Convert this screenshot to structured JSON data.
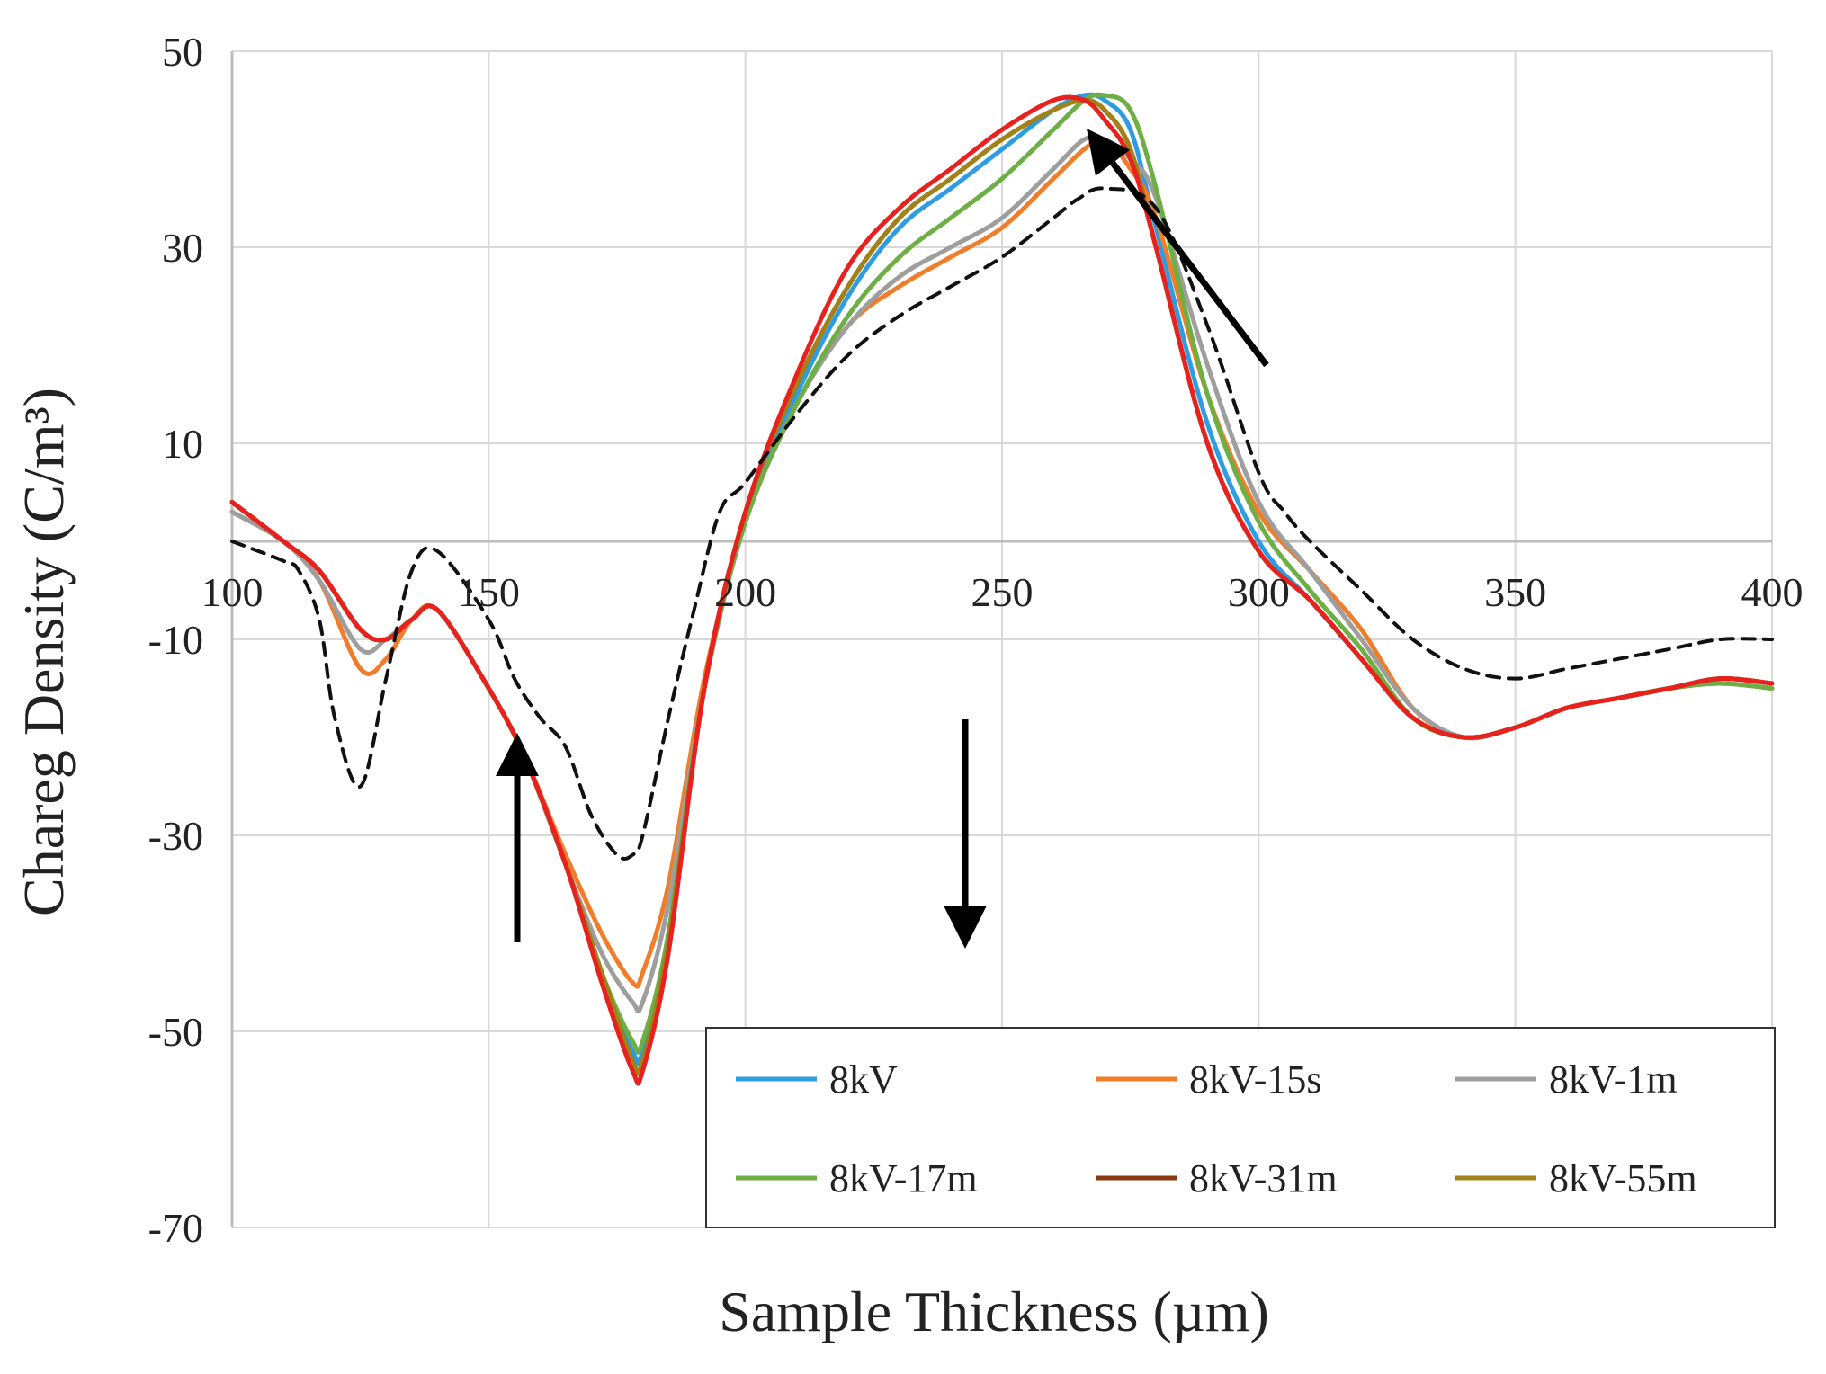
{
  "chart_data": {
    "type": "line",
    "title": "",
    "xlabel": "Sample Thickness (µm)",
    "ylabel": "Chareg Density (C/m³)",
    "xlim": [
      100,
      400
    ],
    "ylim": [
      -70,
      50
    ],
    "x_ticks": [
      100,
      150,
      200,
      250,
      300,
      350,
      400
    ],
    "y_ticks": [
      50,
      30,
      10,
      -10,
      -30,
      -50,
      -70
    ],
    "x_tick_labels": [
      "100",
      "150",
      "200",
      "250",
      "300",
      "350",
      "400"
    ],
    "y_tick_labels": [
      "50",
      "30",
      "10",
      "-10",
      "-30",
      "-50",
      "-70"
    ],
    "grid": true,
    "legend_position": "bottom-right",
    "series": [
      {
        "name": "8kV",
        "color": "#2E9CE0",
        "dashed": false,
        "in_legend": true,
        "x": [
          100,
          110,
          117,
          125,
          130,
          135,
          140,
          150,
          157,
          165,
          172,
          178,
          180,
          185,
          192,
          200,
          210,
          220,
          230,
          240,
          250,
          260,
          266,
          270,
          275,
          280,
          290,
          300,
          310,
          320,
          330,
          340,
          350,
          360,
          370,
          380,
          390,
          400
        ],
        "y": [
          4,
          0,
          -3,
          -9,
          -10,
          -8,
          -7,
          -15,
          -22,
          -33,
          -44,
          -52,
          -52,
          -40,
          -15,
          2,
          15,
          25,
          32,
          36,
          40,
          44,
          45.5,
          45,
          42,
          32,
          12,
          0,
          -6,
          -12,
          -18,
          -20,
          -19,
          -17,
          -16,
          -15,
          -14,
          -14.5
        ]
      },
      {
        "name": "8kV-15s",
        "color": "#F07D2A",
        "dashed": false,
        "in_legend": true,
        "x": [
          100,
          110,
          117,
          125,
          130,
          135,
          140,
          150,
          157,
          165,
          172,
          178,
          180,
          185,
          192,
          200,
          210,
          220,
          230,
          240,
          250,
          260,
          266,
          270,
          275,
          280,
          290,
          300,
          310,
          320,
          330,
          340,
          350,
          360,
          370,
          380,
          390,
          400
        ],
        "y": [
          3,
          0,
          -4,
          -13,
          -12,
          -8,
          -7,
          -15,
          -22,
          -32,
          -40,
          -45,
          -44,
          -35,
          -14,
          2,
          14,
          22,
          26,
          29,
          32,
          37,
          40,
          41,
          38,
          33,
          15,
          3,
          -3,
          -9,
          -17,
          -20,
          -19,
          -17,
          -16,
          -15,
          -14.5,
          -15
        ]
      },
      {
        "name": "8kV-1m",
        "color": "#9E9E9E",
        "dashed": false,
        "in_legend": true,
        "x": [
          100,
          110,
          117,
          125,
          130,
          135,
          140,
          150,
          157,
          165,
          172,
          178,
          180,
          185,
          192,
          200,
          210,
          220,
          230,
          240,
          250,
          260,
          266,
          270,
          275,
          280,
          290,
          300,
          310,
          320,
          330,
          340,
          350,
          360,
          370,
          380,
          390,
          400
        ],
        "y": [
          3,
          0,
          -4,
          -11,
          -10,
          -8,
          -7,
          -15,
          -22,
          -33,
          -42,
          -47,
          -47,
          -37,
          -15,
          2,
          14,
          22,
          27,
          30,
          33,
          38,
          41,
          41,
          39,
          35,
          18,
          4,
          -3,
          -10,
          -17,
          -20,
          -19,
          -17,
          -16,
          -15,
          -14.5,
          -15
        ]
      },
      {
        "name": "8kV-17m",
        "color": "#6DAE45",
        "dashed": false,
        "in_legend": true,
        "x": [
          100,
          110,
          117,
          125,
          130,
          135,
          140,
          150,
          157,
          165,
          172,
          178,
          180,
          185,
          192,
          200,
          210,
          220,
          230,
          240,
          250,
          260,
          266,
          270,
          275,
          280,
          290,
          300,
          310,
          320,
          330,
          340,
          350,
          360,
          370,
          380,
          390,
          400
        ],
        "y": [
          4,
          0,
          -3,
          -9,
          -10,
          -8,
          -7,
          -15,
          -22,
          -33,
          -44,
          -51,
          -51,
          -40,
          -15,
          2,
          14,
          23,
          29,
          33,
          37,
          42,
          45,
          45.5,
          44,
          36,
          15,
          2,
          -5,
          -11,
          -18,
          -20,
          -19,
          -17,
          -16,
          -15,
          -14.5,
          -15
        ]
      },
      {
        "name": "8kV-31m",
        "color": "#8B3A0F",
        "dashed": false,
        "in_legend": true,
        "x": [
          100,
          110,
          117,
          125,
          130,
          135,
          140,
          150,
          157,
          165,
          172,
          178,
          180,
          185,
          192,
          200,
          210,
          220,
          230,
          240,
          250,
          260,
          266,
          270,
          275,
          280,
          290,
          300,
          310,
          320,
          330,
          340,
          350,
          360,
          370,
          380,
          390,
          400
        ],
        "y": [
          4,
          0,
          -3,
          -9,
          -10,
          -8,
          -7,
          -15,
          -22,
          -33,
          -44,
          -53,
          -53,
          -41,
          -15,
          3,
          16,
          26,
          33,
          37,
          41,
          44,
          45,
          44,
          40,
          30,
          10,
          -1,
          -6,
          -12,
          -18,
          -20,
          -19,
          -17,
          -16,
          -15,
          -14,
          -14.5
        ]
      },
      {
        "name": "8kV-55m",
        "color": "#A08218",
        "dashed": false,
        "in_legend": true,
        "x": [
          100,
          110,
          117,
          125,
          130,
          135,
          140,
          150,
          157,
          165,
          172,
          178,
          180,
          185,
          192,
          200,
          210,
          220,
          230,
          240,
          250,
          260,
          266,
          270,
          275,
          280,
          290,
          300,
          310,
          320,
          330,
          340,
          350,
          360,
          370,
          380,
          390,
          400
        ],
        "y": [
          4,
          0,
          -3,
          -9,
          -10,
          -8,
          -7,
          -15,
          -22,
          -33,
          -44,
          -53,
          -53,
          -41,
          -15,
          3,
          16,
          26,
          33,
          37,
          41,
          44,
          45,
          44,
          40,
          30,
          10,
          -1,
          -6,
          -12,
          -18,
          -20,
          -19,
          -17,
          -16,
          -15,
          -14,
          -14.5
        ]
      },
      {
        "name": "red",
        "color": "#E8201E",
        "dashed": false,
        "in_legend": false,
        "x": [
          100,
          110,
          117,
          125,
          130,
          135,
          140,
          150,
          157,
          165,
          172,
          178,
          180,
          185,
          192,
          200,
          210,
          220,
          230,
          240,
          250,
          260,
          266,
          270,
          275,
          280,
          290,
          300,
          310,
          320,
          330,
          340,
          350,
          360,
          370,
          380,
          390,
          400
        ],
        "y": [
          4,
          0,
          -3,
          -9,
          -10,
          -8,
          -7,
          -15,
          -22,
          -33,
          -45,
          -54,
          -54,
          -42,
          -15,
          3,
          17,
          28,
          34,
          38,
          42,
          45,
          45,
          43,
          39,
          30,
          10,
          -1,
          -6,
          -12,
          -18,
          -20,
          -19,
          -17,
          -16,
          -15,
          -14,
          -14.5
        ]
      },
      {
        "name": "dashed",
        "color": "#111111",
        "dashed": true,
        "in_legend": false,
        "x": [
          100,
          110,
          113,
          117,
          120,
          125,
          130,
          135,
          140,
          150,
          155,
          160,
          165,
          170,
          175,
          178,
          180,
          185,
          190,
          195,
          200,
          210,
          220,
          230,
          240,
          250,
          260,
          265,
          270,
          280,
          290,
          300,
          305,
          310,
          320,
          330,
          340,
          350,
          360,
          370,
          380,
          390,
          400
        ],
        "y": [
          0,
          -2,
          -3,
          -8,
          -18,
          -25,
          -14,
          -3,
          -1,
          -8,
          -14,
          -18,
          -21,
          -28,
          -32,
          -32,
          -30,
          -18,
          -7,
          3,
          6,
          13,
          19,
          23,
          26,
          29,
          33,
          35,
          36,
          34,
          22,
          7,
          3,
          0,
          -5,
          -10,
          -13,
          -14,
          -13,
          -12,
          -11,
          -10,
          -10
        ]
      }
    ],
    "annotations": [
      {
        "type": "arrow",
        "direction": "up",
        "at_x": 157
      },
      {
        "type": "arrow",
        "direction": "down",
        "at_x": 243
      },
      {
        "type": "arrow",
        "direction": "up-left",
        "at_x": 268
      }
    ]
  },
  "legend": {
    "items": [
      {
        "label": "8kV",
        "color": "#2E9CE0"
      },
      {
        "label": "8kV-15s",
        "color": "#F07D2A"
      },
      {
        "label": "8kV-1m",
        "color": "#9E9E9E"
      },
      {
        "label": "8kV-17m",
        "color": "#6DAE45"
      },
      {
        "label": "8kV-31m",
        "color": "#8B3A0F"
      },
      {
        "label": "8kV-55m",
        "color": "#A08218"
      }
    ]
  }
}
